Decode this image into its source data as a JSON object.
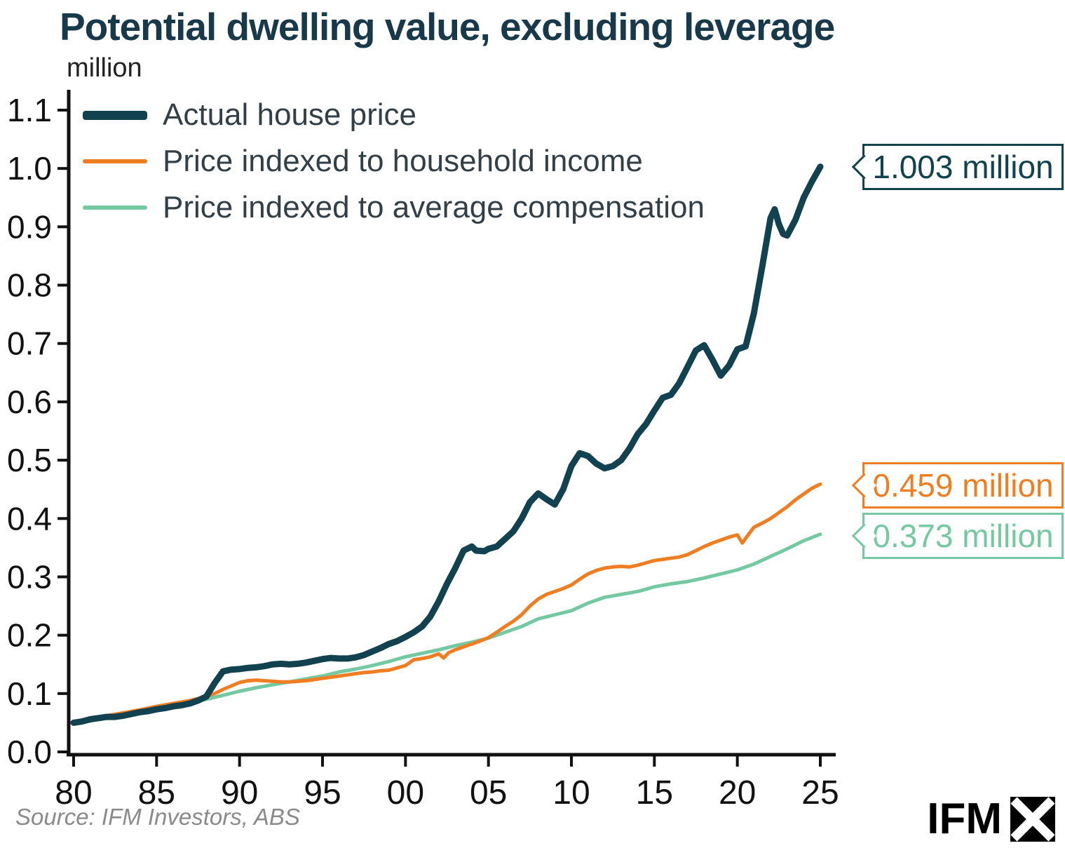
{
  "title": "Potential dwelling value, excluding leverage",
  "unit_label": "million",
  "legend": [
    {
      "label": "Actual house price",
      "color": "#12414f",
      "thick": true
    },
    {
      "label": "Price indexed to household income",
      "color": "#ef7d22",
      "thick": false
    },
    {
      "label": "Price indexed to average compensation",
      "color": "#74c9a3",
      "thick": false
    }
  ],
  "callouts": [
    {
      "text": "1.003 million",
      "color": "#12414f"
    },
    {
      "text": "0.459 million",
      "color": "#ef7d22"
    },
    {
      "text": "0.373 million",
      "color": "#74c9a3"
    }
  ],
  "source": "Source: IFM Investors, ABS",
  "logo_text": "IFM",
  "chart_data": {
    "type": "line",
    "title": "Potential dwelling value, excluding leverage",
    "ylabel": "million",
    "ylim": [
      0,
      1.1
    ],
    "xlim": [
      1980,
      2025
    ],
    "grid": false,
    "legend_position": "top-left",
    "y_ticks": [
      0.0,
      0.1,
      0.2,
      0.3,
      0.4,
      0.5,
      0.6,
      0.7,
      0.8,
      0.9,
      1.0,
      1.1
    ],
    "x_ticks": [
      {
        "year": 1980,
        "label": "80"
      },
      {
        "year": 1985,
        "label": "85"
      },
      {
        "year": 1990,
        "label": "90"
      },
      {
        "year": 1995,
        "label": "95"
      },
      {
        "year": 2000,
        "label": "00"
      },
      {
        "year": 2005,
        "label": "05"
      },
      {
        "year": 2010,
        "label": "10"
      },
      {
        "year": 2015,
        "label": "15"
      },
      {
        "year": 2020,
        "label": "20"
      },
      {
        "year": 2025,
        "label": "25"
      }
    ],
    "series": [
      {
        "name": "Price indexed to average compensation",
        "color": "#74c9a3",
        "width": 5,
        "end_value": 0.373,
        "end_label": "0.373 million",
        "points": [
          [
            1980,
            0.048
          ],
          [
            1981,
            0.053
          ],
          [
            1982,
            0.058
          ],
          [
            1983,
            0.063
          ],
          [
            1984,
            0.068
          ],
          [
            1985,
            0.074
          ],
          [
            1986,
            0.08
          ],
          [
            1987,
            0.085
          ],
          [
            1988,
            0.09
          ],
          [
            1989,
            0.097
          ],
          [
            1990,
            0.104
          ],
          [
            1991,
            0.11
          ],
          [
            1992,
            0.115
          ],
          [
            1993,
            0.12
          ],
          [
            1994,
            0.125
          ],
          [
            1995,
            0.13
          ],
          [
            1996,
            0.137
          ],
          [
            1997,
            0.142
          ],
          [
            1998,
            0.148
          ],
          [
            1999,
            0.155
          ],
          [
            2000,
            0.163
          ],
          [
            2001,
            0.169
          ],
          [
            2002,
            0.175
          ],
          [
            2003,
            0.182
          ],
          [
            2004,
            0.188
          ],
          [
            2005,
            0.195
          ],
          [
            2006,
            0.205
          ],
          [
            2007,
            0.215
          ],
          [
            2008,
            0.228
          ],
          [
            2009,
            0.235
          ],
          [
            2010,
            0.242
          ],
          [
            2011,
            0.255
          ],
          [
            2012,
            0.265
          ],
          [
            2013,
            0.27
          ],
          [
            2014,
            0.275
          ],
          [
            2015,
            0.283
          ],
          [
            2016,
            0.288
          ],
          [
            2017,
            0.292
          ],
          [
            2018,
            0.298
          ],
          [
            2019,
            0.305
          ],
          [
            2020,
            0.312
          ],
          [
            2021,
            0.322
          ],
          [
            2022,
            0.335
          ],
          [
            2023,
            0.348
          ],
          [
            2024,
            0.362
          ],
          [
            2025,
            0.373
          ]
        ]
      },
      {
        "name": "Price indexed to household income",
        "color": "#ef7d22",
        "width": 5,
        "end_value": 0.459,
        "end_label": "0.459 million",
        "points": [
          [
            1980,
            0.052
          ],
          [
            1981,
            0.057
          ],
          [
            1982,
            0.062
          ],
          [
            1983,
            0.067
          ],
          [
            1984,
            0.072
          ],
          [
            1985,
            0.078
          ],
          [
            1986,
            0.083
          ],
          [
            1987,
            0.088
          ],
          [
            1988,
            0.095
          ],
          [
            1988.5,
            0.1
          ],
          [
            1989,
            0.107
          ],
          [
            1989.5,
            0.113
          ],
          [
            1990,
            0.119
          ],
          [
            1990.5,
            0.122
          ],
          [
            1991,
            0.123
          ],
          [
            1991.5,
            0.122
          ],
          [
            1992,
            0.121
          ],
          [
            1992.5,
            0.12
          ],
          [
            1993,
            0.12
          ],
          [
            1993.5,
            0.121
          ],
          [
            1994,
            0.122
          ],
          [
            1994.5,
            0.124
          ],
          [
            1995,
            0.126
          ],
          [
            1995.5,
            0.128
          ],
          [
            1996,
            0.13
          ],
          [
            1996.5,
            0.132
          ],
          [
            1997,
            0.134
          ],
          [
            1997.5,
            0.136
          ],
          [
            1998,
            0.137
          ],
          [
            1998.5,
            0.139
          ],
          [
            1999,
            0.14
          ],
          [
            1999.5,
            0.144
          ],
          [
            2000,
            0.148
          ],
          [
            2000.5,
            0.158
          ],
          [
            2001,
            0.16
          ],
          [
            2001.5,
            0.163
          ],
          [
            2002,
            0.168
          ],
          [
            2002.3,
            0.161
          ],
          [
            2002.6,
            0.17
          ],
          [
            2003,
            0.175
          ],
          [
            2003.5,
            0.18
          ],
          [
            2004,
            0.185
          ],
          [
            2004.5,
            0.19
          ],
          [
            2005,
            0.196
          ],
          [
            2005.5,
            0.205
          ],
          [
            2006,
            0.215
          ],
          [
            2006.5,
            0.224
          ],
          [
            2007,
            0.235
          ],
          [
            2007.5,
            0.25
          ],
          [
            2008,
            0.262
          ],
          [
            2008.5,
            0.27
          ],
          [
            2009,
            0.275
          ],
          [
            2009.5,
            0.28
          ],
          [
            2010,
            0.286
          ],
          [
            2010.5,
            0.296
          ],
          [
            2011,
            0.305
          ],
          [
            2011.5,
            0.311
          ],
          [
            2012,
            0.315
          ],
          [
            2012.5,
            0.317
          ],
          [
            2013,
            0.318
          ],
          [
            2013.5,
            0.317
          ],
          [
            2014,
            0.32
          ],
          [
            2014.5,
            0.324
          ],
          [
            2015,
            0.328
          ],
          [
            2015.5,
            0.33
          ],
          [
            2016,
            0.332
          ],
          [
            2016.5,
            0.334
          ],
          [
            2017,
            0.338
          ],
          [
            2017.5,
            0.345
          ],
          [
            2018,
            0.352
          ],
          [
            2018.5,
            0.358
          ],
          [
            2019,
            0.363
          ],
          [
            2019.5,
            0.368
          ],
          [
            2020,
            0.372
          ],
          [
            2020.3,
            0.358
          ],
          [
            2020.6,
            0.37
          ],
          [
            2021,
            0.385
          ],
          [
            2021.5,
            0.392
          ],
          [
            2022,
            0.4
          ],
          [
            2022.5,
            0.41
          ],
          [
            2023,
            0.42
          ],
          [
            2023.5,
            0.432
          ],
          [
            2024,
            0.442
          ],
          [
            2024.5,
            0.452
          ],
          [
            2025,
            0.459
          ]
        ]
      },
      {
        "name": "Actual house price",
        "color": "#12414f",
        "width": 9,
        "end_value": 1.003,
        "end_label": "1.003 million",
        "points": [
          [
            1980,
            0.05
          ],
          [
            1980.5,
            0.052
          ],
          [
            1981,
            0.056
          ],
          [
            1981.5,
            0.058
          ],
          [
            1982,
            0.06
          ],
          [
            1982.5,
            0.06
          ],
          [
            1983,
            0.062
          ],
          [
            1983.5,
            0.065
          ],
          [
            1984,
            0.068
          ],
          [
            1984.5,
            0.07
          ],
          [
            1985,
            0.073
          ],
          [
            1985.5,
            0.075
          ],
          [
            1986,
            0.078
          ],
          [
            1986.5,
            0.08
          ],
          [
            1987,
            0.083
          ],
          [
            1987.5,
            0.088
          ],
          [
            1988,
            0.095
          ],
          [
            1988.5,
            0.118
          ],
          [
            1989,
            0.138
          ],
          [
            1989.5,
            0.141
          ],
          [
            1990,
            0.142
          ],
          [
            1990.5,
            0.144
          ],
          [
            1991,
            0.145
          ],
          [
            1991.5,
            0.147
          ],
          [
            1992,
            0.15
          ],
          [
            1992.5,
            0.151
          ],
          [
            1993,
            0.15
          ],
          [
            1993.5,
            0.151
          ],
          [
            1994,
            0.153
          ],
          [
            1994.5,
            0.156
          ],
          [
            1995,
            0.159
          ],
          [
            1995.5,
            0.161
          ],
          [
            1996,
            0.16
          ],
          [
            1996.5,
            0.16
          ],
          [
            1997,
            0.162
          ],
          [
            1997.5,
            0.166
          ],
          [
            1998,
            0.172
          ],
          [
            1998.5,
            0.178
          ],
          [
            1999,
            0.185
          ],
          [
            1999.5,
            0.19
          ],
          [
            2000,
            0.197
          ],
          [
            2000.5,
            0.205
          ],
          [
            2001,
            0.215
          ],
          [
            2001.5,
            0.232
          ],
          [
            2002,
            0.258
          ],
          [
            2002.5,
            0.288
          ],
          [
            2003,
            0.315
          ],
          [
            2003.5,
            0.345
          ],
          [
            2004,
            0.352
          ],
          [
            2004.25,
            0.345
          ],
          [
            2004.75,
            0.344
          ],
          [
            2005,
            0.348
          ],
          [
            2005.5,
            0.352
          ],
          [
            2006,
            0.365
          ],
          [
            2006.5,
            0.378
          ],
          [
            2007,
            0.4
          ],
          [
            2007.5,
            0.428
          ],
          [
            2008,
            0.443
          ],
          [
            2008.5,
            0.433
          ],
          [
            2009,
            0.424
          ],
          [
            2009.5,
            0.45
          ],
          [
            2010,
            0.49
          ],
          [
            2010.5,
            0.512
          ],
          [
            2011,
            0.507
          ],
          [
            2011.5,
            0.494
          ],
          [
            2012,
            0.486
          ],
          [
            2012.5,
            0.49
          ],
          [
            2013,
            0.5
          ],
          [
            2013.5,
            0.52
          ],
          [
            2014,
            0.545
          ],
          [
            2014.5,
            0.562
          ],
          [
            2015,
            0.585
          ],
          [
            2015.5,
            0.607
          ],
          [
            2016,
            0.612
          ],
          [
            2016.5,
            0.632
          ],
          [
            2017,
            0.66
          ],
          [
            2017.5,
            0.688
          ],
          [
            2018,
            0.697
          ],
          [
            2018.5,
            0.672
          ],
          [
            2019,
            0.645
          ],
          [
            2019.5,
            0.662
          ],
          [
            2020,
            0.69
          ],
          [
            2020.5,
            0.695
          ],
          [
            2021,
            0.752
          ],
          [
            2021.5,
            0.832
          ],
          [
            2022,
            0.915
          ],
          [
            2022.25,
            0.93
          ],
          [
            2022.5,
            0.905
          ],
          [
            2022.75,
            0.888
          ],
          [
            2023,
            0.885
          ],
          [
            2023.5,
            0.912
          ],
          [
            2024,
            0.95
          ],
          [
            2024.5,
            0.978
          ],
          [
            2025,
            1.003
          ]
        ]
      }
    ]
  }
}
